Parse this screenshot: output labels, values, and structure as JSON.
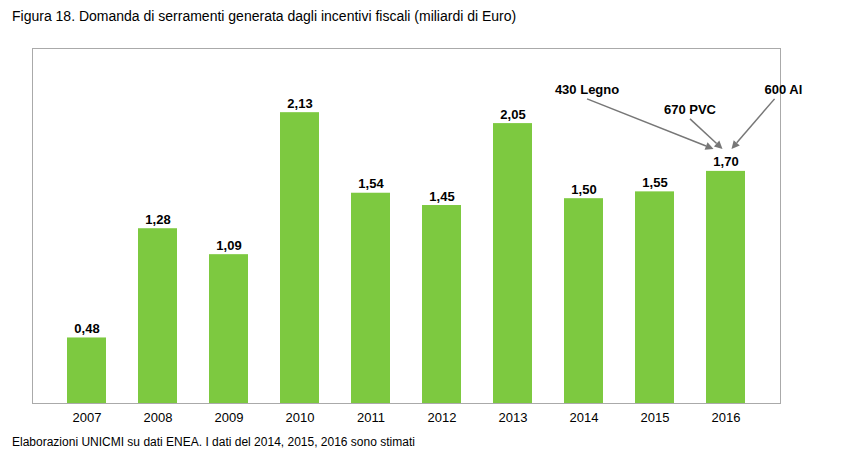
{
  "chart_data": {
    "type": "bar",
    "title": "Figura 18. Domanda di serramenti generata dagli incentivi fiscali (miliardi di Euro)",
    "categories": [
      "2007",
      "2008",
      "2009",
      "2010",
      "2011",
      "2012",
      "2013",
      "2014",
      "2015",
      "2016"
    ],
    "values": [
      0.48,
      1.28,
      1.09,
      2.13,
      1.54,
      1.45,
      2.05,
      1.5,
      1.55,
      1.7
    ],
    "value_labels": [
      "0,48",
      "1,28",
      "1,09",
      "2,13",
      "1,54",
      "1,45",
      "2,05",
      "1,50",
      "1,55",
      "1,70"
    ],
    "data_labels": true,
    "color": "#7DC940",
    "ylim": [
      0,
      2.6
    ],
    "yticks": [],
    "grid": false,
    "tick_labels": "x",
    "annotations": [
      {
        "text": "430 Legno",
        "target": "2016"
      },
      {
        "text": "670 PVC",
        "target": "2016"
      },
      {
        "text": "600 Al",
        "target": "2016"
      }
    ],
    "caption": "Elaborazioni UNICMI su dati ENEA. I dati del 2014, 2015, 2016 sono stimati"
  }
}
